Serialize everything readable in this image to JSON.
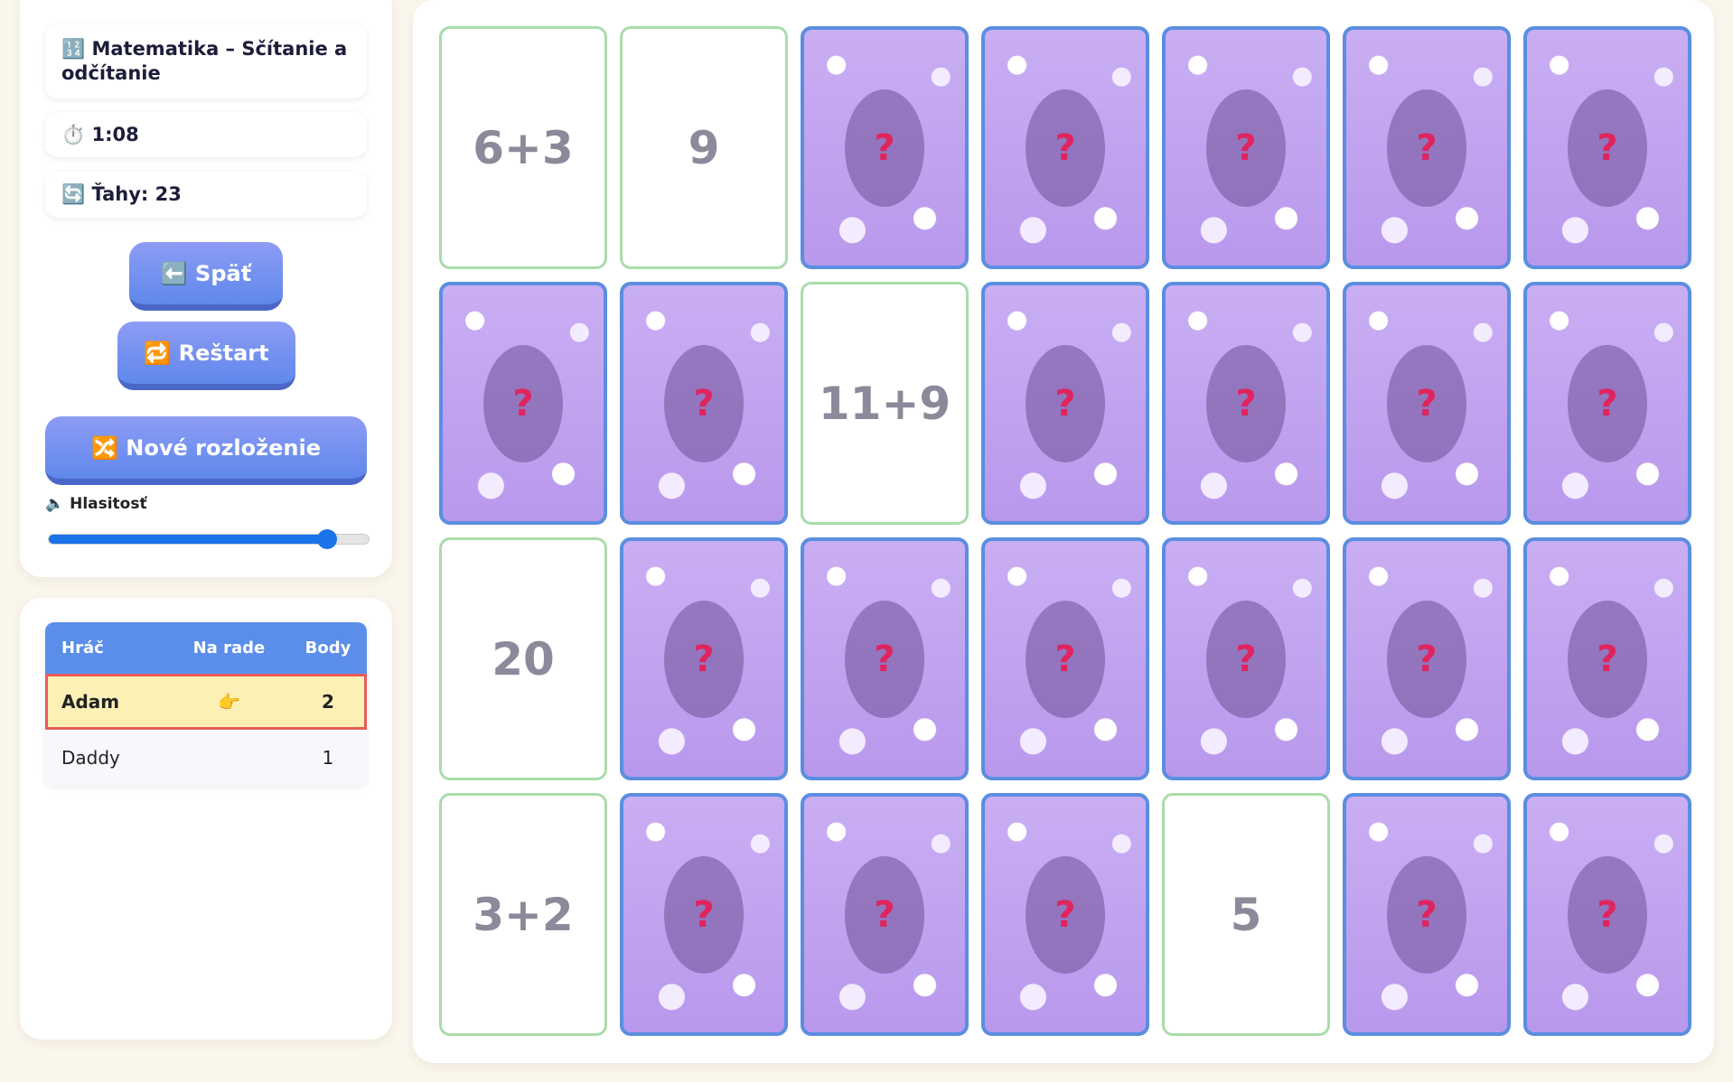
{
  "sidebar": {
    "title": "🔢 Matematika – Sčítanie a odčítanie",
    "timer": "⏱️ 1:08",
    "moves": "🔄 Ťahy: 23",
    "buttons": {
      "back": "⬅️ Späť",
      "restart": "🔁 Reštart",
      "shuffle": "🔀 Nové rozloženie"
    },
    "volume": {
      "label": "🔈 Hlasitosť",
      "value": 0.87
    }
  },
  "scoreboard": {
    "headers": [
      "Hráč",
      "Na rade",
      "Body"
    ],
    "rows": [
      [
        "Adam",
        "👉",
        "2"
      ],
      [
        "Daddy",
        null,
        "1"
      ]
    ]
  },
  "board": {
    "cards": [
      [
        "6+3",
        "9",
        null,
        null,
        null,
        null,
        null
      ],
      [
        null,
        null,
        "11+9",
        null,
        null,
        null,
        null
      ],
      [
        "20",
        null,
        null,
        null,
        null,
        null,
        null
      ],
      [
        "3+2",
        null,
        null,
        null,
        "5",
        null,
        null
      ]
    ]
  }
}
